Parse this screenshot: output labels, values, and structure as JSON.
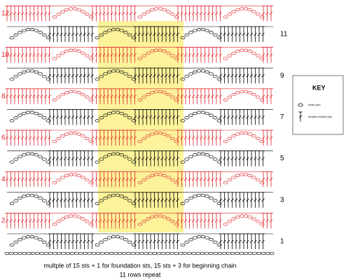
{
  "rows": [
    1,
    2,
    3,
    4,
    5,
    6,
    7,
    8,
    9,
    10,
    11,
    12
  ],
  "key": {
    "title": "KEY",
    "items": [
      "chain (ch)",
      "double crochet (dc)"
    ]
  },
  "caption": [
    "multple of 15 sts + 1 for foundation sts, 15 sts + 3 for beginning chain",
    "11 rows repeat"
  ]
}
